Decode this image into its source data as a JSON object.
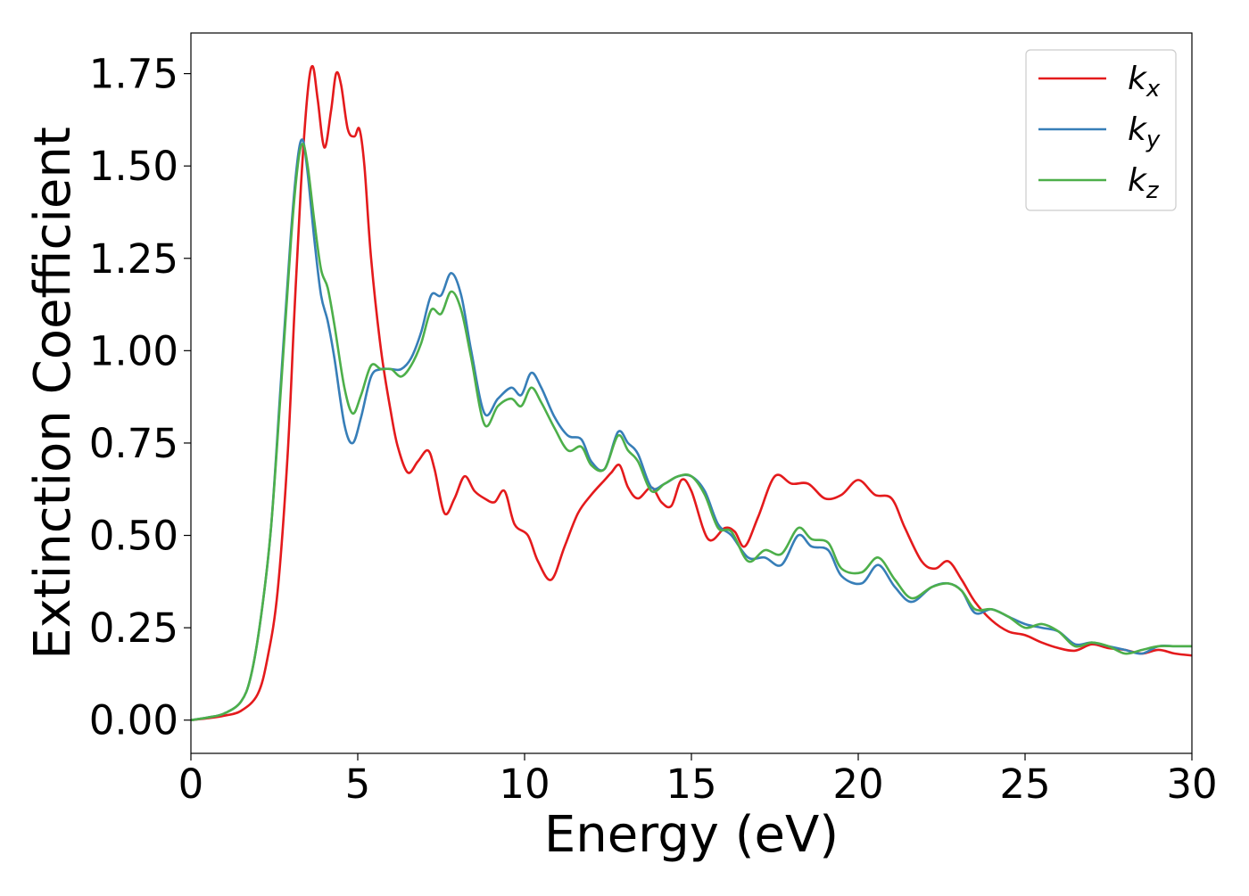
{
  "chart_data": {
    "type": "line",
    "title": "",
    "xlabel": "Energy (eV)",
    "ylabel": "Extinction Coefficient",
    "xlim": [
      0,
      30
    ],
    "ylim": [
      -0.09,
      1.86
    ],
    "xticks": [
      0,
      5,
      10,
      15,
      20,
      25,
      30
    ],
    "xtick_labels": [
      "0",
      "5",
      "10",
      "15",
      "20",
      "25",
      "30"
    ],
    "yticks": [
      0,
      0.25,
      0.5,
      0.75,
      1.0,
      1.25,
      1.5,
      1.75
    ],
    "ytick_labels": [
      "0.00",
      "0.25",
      "0.50",
      "0.75",
      "1.00",
      "1.25",
      "1.50",
      "1.75"
    ],
    "grid": false,
    "legend_position": "top-right",
    "series": [
      {
        "name": "k_x",
        "label_main": "k",
        "label_sub": "x",
        "color": "#e41a1c",
        "points": [
          [
            0,
            0.0
          ],
          [
            0.5,
            0.005
          ],
          [
            1.0,
            0.012
          ],
          [
            1.5,
            0.025
          ],
          [
            2.0,
            0.07
          ],
          [
            2.3,
            0.17
          ],
          [
            2.6,
            0.35
          ],
          [
            2.9,
            0.72
          ],
          [
            3.1,
            1.1
          ],
          [
            3.3,
            1.45
          ],
          [
            3.5,
            1.7
          ],
          [
            3.65,
            1.77
          ],
          [
            3.8,
            1.68
          ],
          [
            4.0,
            1.55
          ],
          [
            4.2,
            1.65
          ],
          [
            4.35,
            1.75
          ],
          [
            4.5,
            1.72
          ],
          [
            4.7,
            1.6
          ],
          [
            4.9,
            1.58
          ],
          [
            5.05,
            1.6
          ],
          [
            5.2,
            1.5
          ],
          [
            5.4,
            1.25
          ],
          [
            5.7,
            1.0
          ],
          [
            6.0,
            0.83
          ],
          [
            6.2,
            0.74
          ],
          [
            6.5,
            0.67
          ],
          [
            6.8,
            0.7
          ],
          [
            7.1,
            0.73
          ],
          [
            7.3,
            0.68
          ],
          [
            7.6,
            0.56
          ],
          [
            7.9,
            0.6
          ],
          [
            8.2,
            0.66
          ],
          [
            8.5,
            0.62
          ],
          [
            8.8,
            0.6
          ],
          [
            9.1,
            0.59
          ],
          [
            9.4,
            0.62
          ],
          [
            9.7,
            0.53
          ],
          [
            10.1,
            0.5
          ],
          [
            10.4,
            0.43
          ],
          [
            10.8,
            0.38
          ],
          [
            11.2,
            0.47
          ],
          [
            11.6,
            0.56
          ],
          [
            12.0,
            0.61
          ],
          [
            12.4,
            0.65
          ],
          [
            12.6,
            0.67
          ],
          [
            12.85,
            0.69
          ],
          [
            13.1,
            0.63
          ],
          [
            13.4,
            0.6
          ],
          [
            13.8,
            0.63
          ],
          [
            14.1,
            0.59
          ],
          [
            14.4,
            0.58
          ],
          [
            14.7,
            0.65
          ],
          [
            15.0,
            0.62
          ],
          [
            15.5,
            0.49
          ],
          [
            16.0,
            0.52
          ],
          [
            16.3,
            0.51
          ],
          [
            16.6,
            0.47
          ],
          [
            17.0,
            0.55
          ],
          [
            17.5,
            0.66
          ],
          [
            18.0,
            0.64
          ],
          [
            18.5,
            0.64
          ],
          [
            19.0,
            0.6
          ],
          [
            19.5,
            0.61
          ],
          [
            20.0,
            0.65
          ],
          [
            20.5,
            0.61
          ],
          [
            21.0,
            0.6
          ],
          [
            21.4,
            0.52
          ],
          [
            21.9,
            0.43
          ],
          [
            22.3,
            0.41
          ],
          [
            22.7,
            0.43
          ],
          [
            23.1,
            0.38
          ],
          [
            23.5,
            0.32
          ],
          [
            24.0,
            0.27
          ],
          [
            24.5,
            0.24
          ],
          [
            25.0,
            0.23
          ],
          [
            25.5,
            0.21
          ],
          [
            26.0,
            0.195
          ],
          [
            26.5,
            0.188
          ],
          [
            27.0,
            0.205
          ],
          [
            27.5,
            0.195
          ],
          [
            28.0,
            0.19
          ],
          [
            28.5,
            0.18
          ],
          [
            29.0,
            0.19
          ],
          [
            29.5,
            0.18
          ],
          [
            30.0,
            0.175
          ]
        ]
      },
      {
        "name": "k_y",
        "label_main": "k",
        "label_sub": "y",
        "color": "#377eb8",
        "points": [
          [
            0,
            0.0
          ],
          [
            0.5,
            0.007
          ],
          [
            1.0,
            0.018
          ],
          [
            1.5,
            0.05
          ],
          [
            1.8,
            0.12
          ],
          [
            2.1,
            0.28
          ],
          [
            2.4,
            0.52
          ],
          [
            2.7,
            0.92
          ],
          [
            3.0,
            1.32
          ],
          [
            3.2,
            1.52
          ],
          [
            3.35,
            1.57
          ],
          [
            3.5,
            1.48
          ],
          [
            3.7,
            1.3
          ],
          [
            3.9,
            1.15
          ],
          [
            4.1,
            1.08
          ],
          [
            4.3,
            0.98
          ],
          [
            4.6,
            0.8
          ],
          [
            4.85,
            0.75
          ],
          [
            5.1,
            0.82
          ],
          [
            5.4,
            0.93
          ],
          [
            5.7,
            0.95
          ],
          [
            6.0,
            0.95
          ],
          [
            6.3,
            0.95
          ],
          [
            6.6,
            0.98
          ],
          [
            6.9,
            1.05
          ],
          [
            7.2,
            1.15
          ],
          [
            7.5,
            1.15
          ],
          [
            7.8,
            1.21
          ],
          [
            8.1,
            1.15
          ],
          [
            8.4,
            1.0
          ],
          [
            8.8,
            0.83
          ],
          [
            9.2,
            0.87
          ],
          [
            9.6,
            0.9
          ],
          [
            9.9,
            0.88
          ],
          [
            10.2,
            0.94
          ],
          [
            10.5,
            0.9
          ],
          [
            10.9,
            0.82
          ],
          [
            11.3,
            0.77
          ],
          [
            11.7,
            0.76
          ],
          [
            12.0,
            0.7
          ],
          [
            12.4,
            0.68
          ],
          [
            12.8,
            0.78
          ],
          [
            13.1,
            0.75
          ],
          [
            13.4,
            0.72
          ],
          [
            13.8,
            0.63
          ],
          [
            14.2,
            0.64
          ],
          [
            14.6,
            0.66
          ],
          [
            15.0,
            0.66
          ],
          [
            15.4,
            0.62
          ],
          [
            15.8,
            0.53
          ],
          [
            16.2,
            0.5
          ],
          [
            16.7,
            0.44
          ],
          [
            17.2,
            0.44
          ],
          [
            17.7,
            0.42
          ],
          [
            18.2,
            0.5
          ],
          [
            18.6,
            0.47
          ],
          [
            19.1,
            0.46
          ],
          [
            19.5,
            0.39
          ],
          [
            20.1,
            0.37
          ],
          [
            20.6,
            0.42
          ],
          [
            21.1,
            0.36
          ],
          [
            21.6,
            0.32
          ],
          [
            22.2,
            0.36
          ],
          [
            22.7,
            0.37
          ],
          [
            23.1,
            0.35
          ],
          [
            23.5,
            0.29
          ],
          [
            24.0,
            0.3
          ],
          [
            24.5,
            0.28
          ],
          [
            25.0,
            0.26
          ],
          [
            25.5,
            0.25
          ],
          [
            26.0,
            0.24
          ],
          [
            26.5,
            0.205
          ],
          [
            27.0,
            0.21
          ],
          [
            27.5,
            0.2
          ],
          [
            28.0,
            0.19
          ],
          [
            28.5,
            0.18
          ],
          [
            29.0,
            0.2
          ],
          [
            29.5,
            0.2
          ],
          [
            30.0,
            0.2
          ]
        ]
      },
      {
        "name": "k_z",
        "label_main": "k",
        "label_sub": "z",
        "color": "#4daf4a",
        "points": [
          [
            0,
            0.0
          ],
          [
            0.5,
            0.007
          ],
          [
            1.0,
            0.018
          ],
          [
            1.5,
            0.05
          ],
          [
            1.8,
            0.12
          ],
          [
            2.1,
            0.28
          ],
          [
            2.4,
            0.52
          ],
          [
            2.7,
            0.9
          ],
          [
            3.0,
            1.3
          ],
          [
            3.2,
            1.5
          ],
          [
            3.35,
            1.56
          ],
          [
            3.5,
            1.5
          ],
          [
            3.7,
            1.35
          ],
          [
            3.9,
            1.22
          ],
          [
            4.1,
            1.17
          ],
          [
            4.3,
            1.07
          ],
          [
            4.6,
            0.9
          ],
          [
            4.85,
            0.83
          ],
          [
            5.1,
            0.88
          ],
          [
            5.4,
            0.96
          ],
          [
            5.7,
            0.95
          ],
          [
            6.0,
            0.95
          ],
          [
            6.3,
            0.93
          ],
          [
            6.6,
            0.96
          ],
          [
            6.9,
            1.02
          ],
          [
            7.2,
            1.11
          ],
          [
            7.5,
            1.1
          ],
          [
            7.8,
            1.16
          ],
          [
            8.1,
            1.11
          ],
          [
            8.4,
            0.98
          ],
          [
            8.8,
            0.8
          ],
          [
            9.2,
            0.85
          ],
          [
            9.6,
            0.87
          ],
          [
            9.9,
            0.85
          ],
          [
            10.2,
            0.9
          ],
          [
            10.5,
            0.86
          ],
          [
            10.9,
            0.79
          ],
          [
            11.3,
            0.73
          ],
          [
            11.7,
            0.74
          ],
          [
            12.0,
            0.69
          ],
          [
            12.4,
            0.68
          ],
          [
            12.8,
            0.77
          ],
          [
            13.1,
            0.73
          ],
          [
            13.4,
            0.7
          ],
          [
            13.8,
            0.62
          ],
          [
            14.2,
            0.64
          ],
          [
            14.6,
            0.66
          ],
          [
            15.0,
            0.66
          ],
          [
            15.4,
            0.61
          ],
          [
            15.8,
            0.52
          ],
          [
            16.2,
            0.51
          ],
          [
            16.7,
            0.43
          ],
          [
            17.2,
            0.46
          ],
          [
            17.7,
            0.45
          ],
          [
            18.2,
            0.52
          ],
          [
            18.6,
            0.49
          ],
          [
            19.1,
            0.48
          ],
          [
            19.5,
            0.41
          ],
          [
            20.1,
            0.4
          ],
          [
            20.6,
            0.44
          ],
          [
            21.1,
            0.38
          ],
          [
            21.6,
            0.33
          ],
          [
            22.2,
            0.36
          ],
          [
            22.7,
            0.37
          ],
          [
            23.1,
            0.35
          ],
          [
            23.5,
            0.3
          ],
          [
            24.0,
            0.3
          ],
          [
            24.5,
            0.28
          ],
          [
            25.0,
            0.25
          ],
          [
            25.5,
            0.26
          ],
          [
            26.0,
            0.24
          ],
          [
            26.5,
            0.2
          ],
          [
            27.0,
            0.21
          ],
          [
            27.5,
            0.2
          ],
          [
            28.0,
            0.18
          ],
          [
            28.5,
            0.19
          ],
          [
            29.0,
            0.2
          ],
          [
            29.5,
            0.2
          ],
          [
            30.0,
            0.2
          ]
        ]
      }
    ]
  }
}
